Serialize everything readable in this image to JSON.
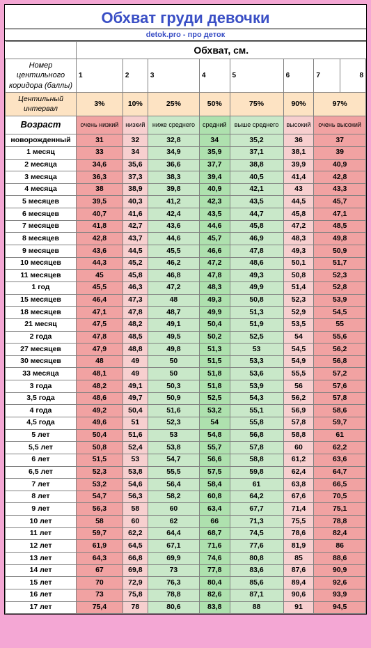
{
  "title": "Обхват груди девочки",
  "subtitle": "detok.pro - про деток",
  "section_header": "Обхват, см.",
  "corridor_label": "Номер центильного коридора (баллы)",
  "corridor_nums": [
    "1",
    "2",
    "3",
    "4",
    "5",
    "6",
    "7",
    "8"
  ],
  "interval_label": "Центильный интервал",
  "percents": [
    "3%",
    "10%",
    "25%",
    "50%",
    "75%",
    "90%",
    "97%"
  ],
  "age_header": "Возраст",
  "categories": [
    "очень низкий",
    "низкий",
    "ниже среднего",
    "средний",
    "выше среднего",
    "высокий",
    "очень высокий"
  ],
  "col_classes": [
    "c1",
    "c2",
    "c3",
    "c4",
    "c5",
    "c6",
    "c7"
  ],
  "rows": [
    {
      "age": "новорожденный",
      "v": [
        "31",
        "32",
        "32,8",
        "34",
        "35,2",
        "36",
        "37"
      ]
    },
    {
      "age": "1 месяц",
      "v": [
        "33",
        "34",
        "34,9",
        "35,9",
        "37,1",
        "38,1",
        "39"
      ]
    },
    {
      "age": "2 месяца",
      "v": [
        "34,6",
        "35,6",
        "36,6",
        "37,7",
        "38,8",
        "39,9",
        "40,9"
      ]
    },
    {
      "age": "3 месяца",
      "v": [
        "36,3",
        "37,3",
        "38,3",
        "39,4",
        "40,5",
        "41,4",
        "42,8"
      ]
    },
    {
      "age": "4 месяца",
      "v": [
        "38",
        "38,9",
        "39,8",
        "40,9",
        "42,1",
        "43",
        "43,3"
      ]
    },
    {
      "age": "5 месяцев",
      "v": [
        "39,5",
        "40,3",
        "41,2",
        "42,3",
        "43,5",
        "44,5",
        "45,7"
      ]
    },
    {
      "age": "6 месяцев",
      "v": [
        "40,7",
        "41,6",
        "42,4",
        "43,5",
        "44,7",
        "45,8",
        "47,1"
      ]
    },
    {
      "age": "7 месяцев",
      "v": [
        "41,8",
        "42,7",
        "43,6",
        "44,6",
        "45,8",
        "47,2",
        "48,5"
      ]
    },
    {
      "age": "8 месяцев",
      "v": [
        "42,8",
        "43,7",
        "44,6",
        "45,7",
        "46,9",
        "48,3",
        "49,8"
      ]
    },
    {
      "age": "9 месяцев",
      "v": [
        "43,6",
        "44,5",
        "45,5",
        "46,6",
        "47,8",
        "49,3",
        "50,9"
      ]
    },
    {
      "age": "10 месяцев",
      "v": [
        "44,3",
        "45,2",
        "46,2",
        "47,2",
        "48,6",
        "50,1",
        "51,7"
      ]
    },
    {
      "age": "11 месяцев",
      "v": [
        "45",
        "45,8",
        "46,8",
        "47,8",
        "49,3",
        "50,8",
        "52,3"
      ]
    },
    {
      "age": "1 год",
      "v": [
        "45,5",
        "46,3",
        "47,2",
        "48,3",
        "49,9",
        "51,4",
        "52,8"
      ]
    },
    {
      "age": "15 месяцев",
      "v": [
        "46,4",
        "47,3",
        "48",
        "49,3",
        "50,8",
        "52,3",
        "53,9"
      ]
    },
    {
      "age": "18 месяцев",
      "v": [
        "47,1",
        "47,8",
        "48,7",
        "49,9",
        "51,3",
        "52,9",
        "54,5"
      ]
    },
    {
      "age": "21 месяц",
      "v": [
        "47,5",
        "48,2",
        "49,1",
        "50,4",
        "51,9",
        "53,5",
        "55"
      ]
    },
    {
      "age": "2 года",
      "v": [
        "47,8",
        "48,5",
        "49,5",
        "50,2",
        "52,5",
        "54",
        "55,6"
      ]
    },
    {
      "age": "27 месяцев",
      "v": [
        "47,9",
        "48,8",
        "49,8",
        "51,3",
        "53",
        "54,5",
        "56,2"
      ]
    },
    {
      "age": "30 месяцев",
      "v": [
        "48",
        "49",
        "50",
        "51,5",
        "53,3",
        "54,9",
        "56,8"
      ]
    },
    {
      "age": "33 месяца",
      "v": [
        "48,1",
        "49",
        "50",
        "51,8",
        "53,6",
        "55,5",
        "57,2"
      ]
    },
    {
      "age": "3 года",
      "v": [
        "48,2",
        "49,1",
        "50,3",
        "51,8",
        "53,9",
        "56",
        "57,6"
      ]
    },
    {
      "age": "3,5 года",
      "v": [
        "48,6",
        "49,7",
        "50,9",
        "52,5",
        "54,3",
        "56,2",
        "57,8"
      ]
    },
    {
      "age": "4 года",
      "v": [
        "49,2",
        "50,4",
        "51,6",
        "53,2",
        "55,1",
        "56,9",
        "58,6"
      ]
    },
    {
      "age": "4,5 года",
      "v": [
        "49,6",
        "51",
        "52,3",
        "54",
        "55,8",
        "57,8",
        "59,7"
      ]
    },
    {
      "age": "5 лет",
      "v": [
        "50,4",
        "51,6",
        "53",
        "54,8",
        "56,8",
        "58,8",
        "61"
      ]
    },
    {
      "age": "5,5 лет",
      "v": [
        "50,8",
        "52,4",
        "53,8",
        "55,7",
        "57,8",
        "60",
        "62,2"
      ]
    },
    {
      "age": "6 лет",
      "v": [
        "51,5",
        "53",
        "54,7",
        "56,6",
        "58,8",
        "61,2",
        "63,6"
      ]
    },
    {
      "age": "6,5 лет",
      "v": [
        "52,3",
        "53,8",
        "55,5",
        "57,5",
        "59,8",
        "62,4",
        "64,7"
      ]
    },
    {
      "age": "7 лет",
      "v": [
        "53,2",
        "54,6",
        "56,4",
        "58,4",
        "61",
        "63,8",
        "66,5"
      ]
    },
    {
      "age": "8 лет",
      "v": [
        "54,7",
        "56,3",
        "58,2",
        "60,8",
        "64,2",
        "67,6",
        "70,5"
      ]
    },
    {
      "age": "9 лет",
      "v": [
        "56,3",
        "58",
        "60",
        "63,4",
        "67,7",
        "71,4",
        "75,1"
      ]
    },
    {
      "age": "10 лет",
      "v": [
        "58",
        "60",
        "62",
        "66",
        "71,3",
        "75,5",
        "78,8"
      ]
    },
    {
      "age": "11 лет",
      "v": [
        "59,7",
        "62,2",
        "64,4",
        "68,7",
        "74,5",
        "78,6",
        "82,4"
      ]
    },
    {
      "age": "12 лет",
      "v": [
        "61,9",
        "64,5",
        "67,1",
        "71,6",
        "77,6",
        "81,9",
        "86"
      ]
    },
    {
      "age": "13 лет",
      "v": [
        "64,3",
        "66,8",
        "69,9",
        "74,6",
        "80,8",
        "85",
        "88,6"
      ]
    },
    {
      "age": "14 лет",
      "v": [
        "67",
        "69,8",
        "73",
        "77,8",
        "83,6",
        "87,6",
        "90,9"
      ]
    },
    {
      "age": "15 лет",
      "v": [
        "70",
        "72,9",
        "76,3",
        "80,4",
        "85,6",
        "89,4",
        "92,6"
      ]
    },
    {
      "age": "16 лет",
      "v": [
        "73",
        "75,8",
        "78,8",
        "82,6",
        "87,1",
        "90,6",
        "93,9"
      ]
    },
    {
      "age": "17 лет",
      "v": [
        "75,4",
        "78",
        "80,6",
        "83,8",
        "88",
        "91",
        "94,5"
      ]
    }
  ]
}
